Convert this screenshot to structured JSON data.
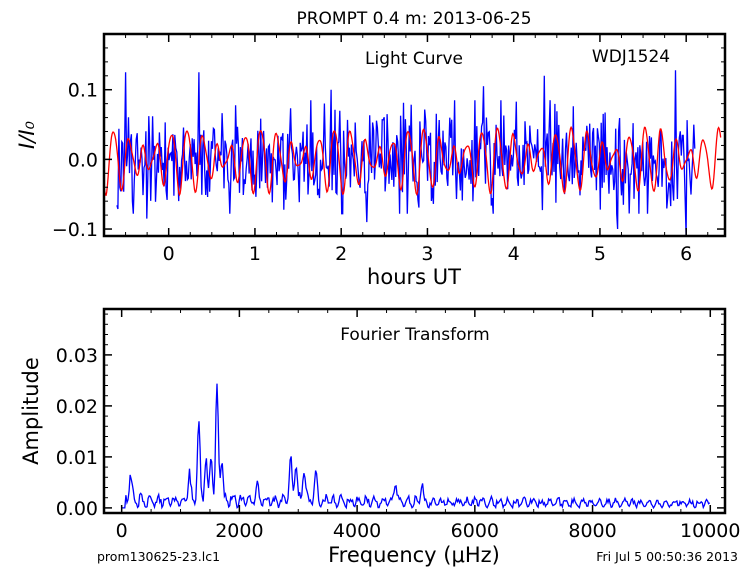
{
  "figure": {
    "title": "PROMPT 0.4 m:  2013-06-25",
    "footer_left": "prom130625-23.lc1",
    "footer_right": "Fri Jul  5 00:50:36 2013"
  },
  "chart_data": [
    {
      "type": "line",
      "annotation": "Light Curve",
      "object_label": "WDJ1524",
      "xlabel": "hours UT",
      "ylabel": "I/I₀",
      "xlim": [
        -0.75,
        6.45
      ],
      "ylim": [
        -0.11,
        0.18
      ],
      "xticks": [
        0,
        1,
        2,
        3,
        4,
        5,
        6
      ],
      "yticks": [
        -0.1,
        0.0,
        0.1
      ],
      "ytick_labels": [
        "−0.1",
        "0.0",
        "0.1"
      ],
      "grid": false,
      "series": [
        {
          "kind": "observed",
          "color": "#0000ff",
          "x_start": -0.6,
          "x_end": 6.1,
          "n_points": 600,
          "amplitude": 0.035,
          "peaks": [
            {
              "x": -0.5,
              "y": 0.125
            },
            {
              "x": 0.35,
              "y": 0.125
            },
            {
              "x": 4.35,
              "y": 0.12
            },
            {
              "x": 5.88,
              "y": 0.128
            },
            {
              "x": 3.65,
              "y": 0.105
            },
            {
              "x": 1.88,
              "y": 0.1
            }
          ],
          "troughs": [
            {
              "x": -0.25,
              "y": -0.085
            },
            {
              "x": 2.3,
              "y": -0.09
            },
            {
              "x": 5.2,
              "y": -0.1
            },
            {
              "x": 6.0,
              "y": -0.11
            }
          ]
        },
        {
          "kind": "model",
          "color": "#ff0000",
          "x_start": -0.75,
          "x_end": 6.4,
          "components": [
            {
              "amplitude": 0.03,
              "frequency_uHz": 1620
            },
            {
              "amplitude": 0.016,
              "frequency_uHz": 1310
            },
            {
              "amplitude": 0.006,
              "frequency_uHz": 2920
            }
          ]
        }
      ]
    },
    {
      "type": "line",
      "annotation": "Fourier Transform",
      "xlabel": "Frequency (μHz)",
      "ylabel": "Amplitude",
      "xlim": [
        -300,
        10250
      ],
      "ylim": [
        -0.001,
        0.039
      ],
      "xticks": [
        0,
        2000,
        4000,
        6000,
        8000,
        10000
      ],
      "yticks": [
        0.0,
        0.01,
        0.02,
        0.03
      ],
      "ytick_labels": [
        "0.00",
        "0.01",
        "0.02",
        "0.03"
      ],
      "grid": false,
      "series": [
        {
          "kind": "amplitude_spectrum",
          "color": "#0000ff",
          "x_start": 0,
          "x_end": 10000,
          "peaks": [
            {
              "x": 150,
              "y": 0.0055
            },
            {
              "x": 1150,
              "y": 0.0055
            },
            {
              "x": 1310,
              "y": 0.0152
            },
            {
              "x": 1430,
              "y": 0.0085
            },
            {
              "x": 1520,
              "y": 0.0095
            },
            {
              "x": 1620,
              "y": 0.0228
            },
            {
              "x": 1700,
              "y": 0.0085
            },
            {
              "x": 2300,
              "y": 0.0035
            },
            {
              "x": 2870,
              "y": 0.0082
            },
            {
              "x": 2960,
              "y": 0.0075
            },
            {
              "x": 3100,
              "y": 0.0068
            },
            {
              "x": 3300,
              "y": 0.0055
            },
            {
              "x": 4650,
              "y": 0.0042
            },
            {
              "x": 5100,
              "y": 0.0035
            }
          ]
        }
      ]
    }
  ]
}
